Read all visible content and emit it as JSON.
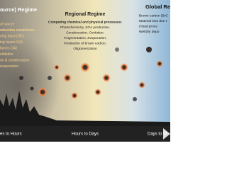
{
  "left": {
    "title": "ource) Regime",
    "lines": [
      "al source",
      "oduction conditions:",
      "ning favors BC/",
      "ing favors OA)",
      "favors OA)",
      "olidation",
      "on & condensation",
      "evaporation"
    ]
  },
  "middle": {
    "title": "Regional Regime",
    "lines": [
      "Competing chemical and physical processes:",
      "Photochemistry, SOA production,",
      "Condensation, Oxidation,",
      "Fragmentation, Evaporation,",
      "Production of brown carbon,",
      "Oligomerization"
    ]
  },
  "right": {
    "title": "Global Regi",
    "lines": [
      "Brown carbon (BrC",
      "Material loss due t",
      "Cloud proce",
      "Wet/dry depo"
    ]
  },
  "timeline": [
    "es to Hours",
    "Hours to Days",
    "Days to W"
  ]
}
